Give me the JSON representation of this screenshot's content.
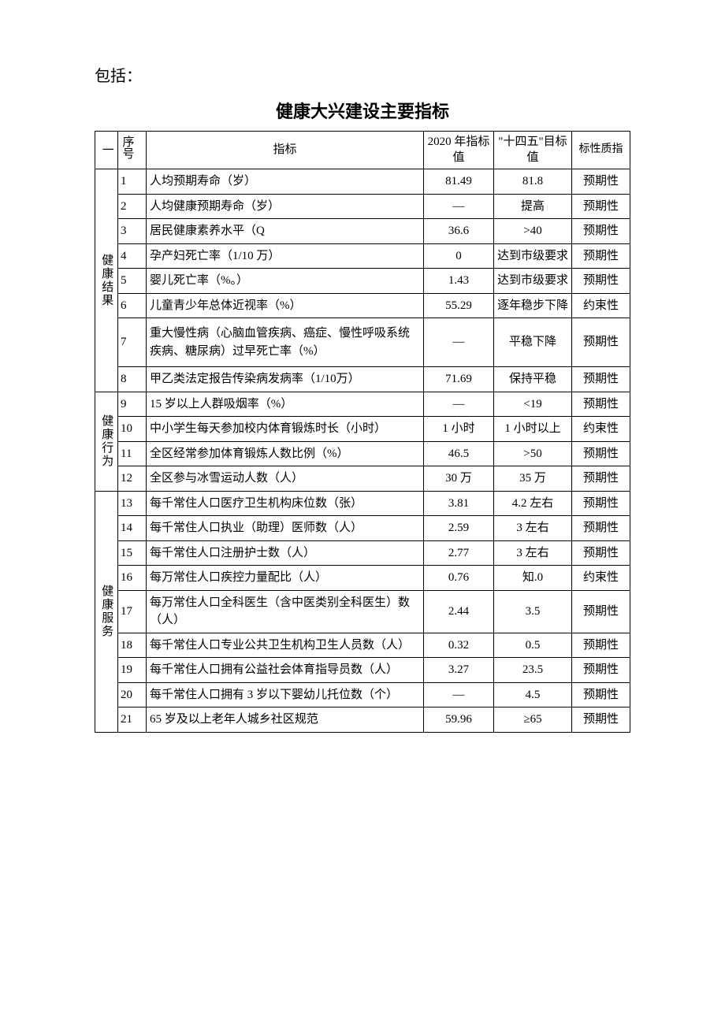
{
  "pretext": "包括：",
  "title": "健康大兴建设主要指标",
  "headers": {
    "category": "一",
    "seq": "序号",
    "indicator": "指标",
    "val2020": "2020 年指标值",
    "target": "\"十四五\"目标值",
    "nature": "标性质指"
  },
  "categories": [
    {
      "name": "健康结果",
      "rowspan": 8,
      "rows": [
        {
          "seq": "1",
          "indicator": "人均预期寿命（岁）",
          "val": "81.49",
          "target": "81.8",
          "nature": "预期性"
        },
        {
          "seq": "2",
          "indicator": "人均健康预期寿命（岁）",
          "val": "—",
          "target": "提高",
          "nature": "预期性"
        },
        {
          "seq": "3",
          "indicator": "居民健康素养水平（Q",
          "val": "36.6",
          "target": ">40",
          "nature": "预期性"
        },
        {
          "seq": "4",
          "indicator": "孕产妇死亡率（1/10 万）",
          "val": "0",
          "target": "达到市级要求",
          "nature": "预期性"
        },
        {
          "seq": "5",
          "indicator": "婴儿死亡率（%。）",
          "val": "1.43",
          "target": "达到市级要求",
          "nature": "预期性"
        },
        {
          "seq": "6",
          "indicator": "儿童青少年总体近视率（%）",
          "val": "55.29",
          "target": "逐年稳步下降",
          "nature": "约束性"
        },
        {
          "seq": "7",
          "indicator": "重大慢性病（心脑血管疾病、癌症、慢性呼吸系统疾病、糖尿病）过早死亡率（%）",
          "val": "—",
          "target": "平稳下降",
          "nature": "预期性"
        },
        {
          "seq": "8",
          "indicator": "甲乙类法定报告传染病发病率（1/10万）",
          "val": "71.69",
          "target": "保持平稳",
          "nature": "预期性"
        }
      ]
    },
    {
      "name": "健康行为",
      "rowspan": 4,
      "rows": [
        {
          "seq": "9",
          "indicator": "15 岁以上人群吸烟率（%）",
          "val": "—",
          "target": "<19",
          "nature": "预期性"
        },
        {
          "seq": "10",
          "indicator": "中小学生每天参加校内体育锻炼时长（小时）",
          "val": "1 小时",
          "target": "1 小时以上",
          "nature": "约束性"
        },
        {
          "seq": "11",
          "indicator": "全区经常参加体育锻炼人数比例（%）",
          "val": "46.5",
          "target": ">50",
          "nature": "预期性"
        },
        {
          "seq": "12",
          "indicator": "全区参与冰雪运动人数（人）",
          "val": "30 万",
          "target": "35 万",
          "nature": "预期性"
        }
      ]
    },
    {
      "name": "健康服务",
      "rowspan": 9,
      "rows": [
        {
          "seq": "13",
          "indicator": "每千常住人口医疗卫生机构床位数（张）",
          "val": "3.81",
          "target": "4.2 左右",
          "nature": "预期性"
        },
        {
          "seq": "14",
          "indicator": "每千常住人口执业（助理）医师数（人）",
          "val": "2.59",
          "target": "3 左右",
          "nature": "预期性"
        },
        {
          "seq": "15",
          "indicator": "每千常住人口注册护士数（人）",
          "val": "2.77",
          "target": "3 左右",
          "nature": "预期性"
        },
        {
          "seq": "16",
          "indicator": "每万常住人口疾控力量配比（人）",
          "val": "0.76",
          "target": "知.0",
          "nature": "约束性"
        },
        {
          "seq": "17",
          "indicator": "每万常住人口全科医生（含中医类别全科医生）数（人）",
          "val": "2.44",
          "target": "3.5",
          "nature": "预期性"
        },
        {
          "seq": "18",
          "indicator": "每千常住人口专业公共卫生机构卫生人员数（人）",
          "val": "0.32",
          "target": "0.5",
          "nature": "预期性"
        },
        {
          "seq": "19",
          "indicator": "每千常住人口拥有公益社会体育指导员数（人）",
          "val": "3.27",
          "target": "23.5",
          "nature": "预期性"
        },
        {
          "seq": "20",
          "indicator": "每千常住人口拥有 3 岁以下婴幼儿托位数（个）",
          "val": "—",
          "target": "4.5",
          "nature": "预期性"
        },
        {
          "seq": "21",
          "indicator": "65 岁及以上老年人城乡社区规范",
          "val": "59.96",
          "target": "≥65",
          "nature": "预期性"
        }
      ]
    }
  ]
}
